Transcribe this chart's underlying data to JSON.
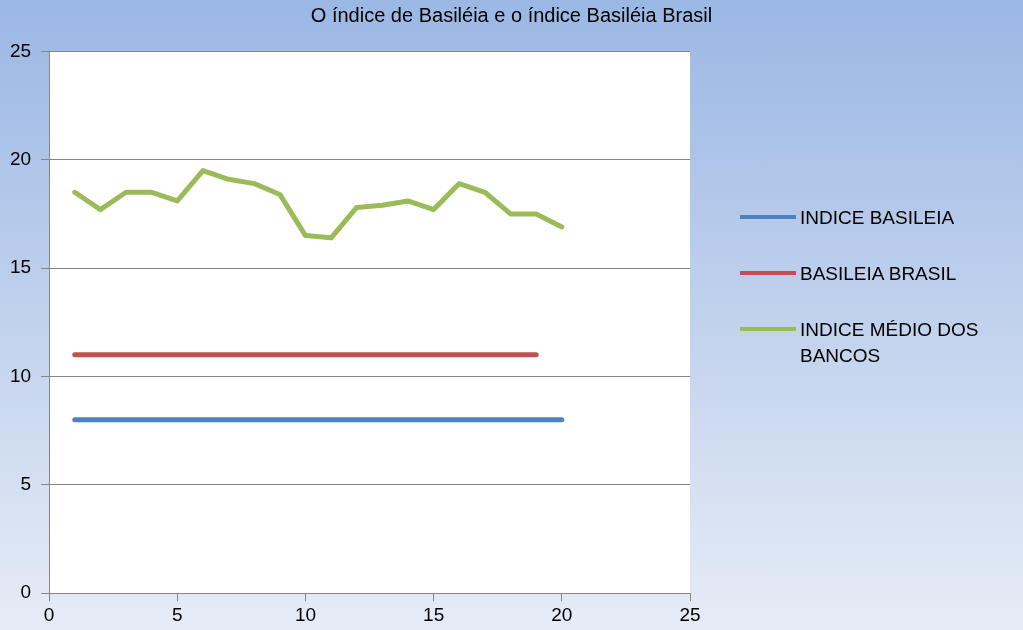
{
  "chart_data": {
    "type": "line",
    "title": "O índice de Basiléia e o índice Basiléia Brasil",
    "xlim": [
      0,
      25
    ],
    "xticks": [
      0,
      5,
      10,
      15,
      20,
      25
    ],
    "ylim": [
      0,
      25
    ],
    "yticks": [
      0,
      5,
      10,
      15,
      20,
      25
    ],
    "grid": "y",
    "legend": "right",
    "marker": "none",
    "line_style": "solid",
    "series": [
      {
        "name": "INDICE BASILEIA",
        "color": "#4f81bd",
        "x": [
          1,
          20
        ],
        "values": [
          8,
          8
        ]
      },
      {
        "name": "BASILEIA BRASIL",
        "color": "#c0504d",
        "x": [
          1,
          19
        ],
        "values": [
          11,
          11
        ]
      },
      {
        "name": "INDICE MÉDIO DOS BANCOS",
        "color": "#9bbb59",
        "x": [
          1,
          2,
          3,
          4,
          5,
          6,
          7,
          8,
          9,
          10,
          11,
          12,
          13,
          14,
          15,
          16,
          17,
          18,
          19,
          20
        ],
        "values": [
          18.5,
          17.7,
          18.5,
          18.5,
          18.1,
          19.5,
          19.1,
          18.9,
          18.4,
          16.5,
          16.4,
          17.8,
          17.9,
          18.1,
          17.7,
          18.9,
          18.5,
          17.5,
          17.5,
          16.9
        ]
      }
    ]
  }
}
